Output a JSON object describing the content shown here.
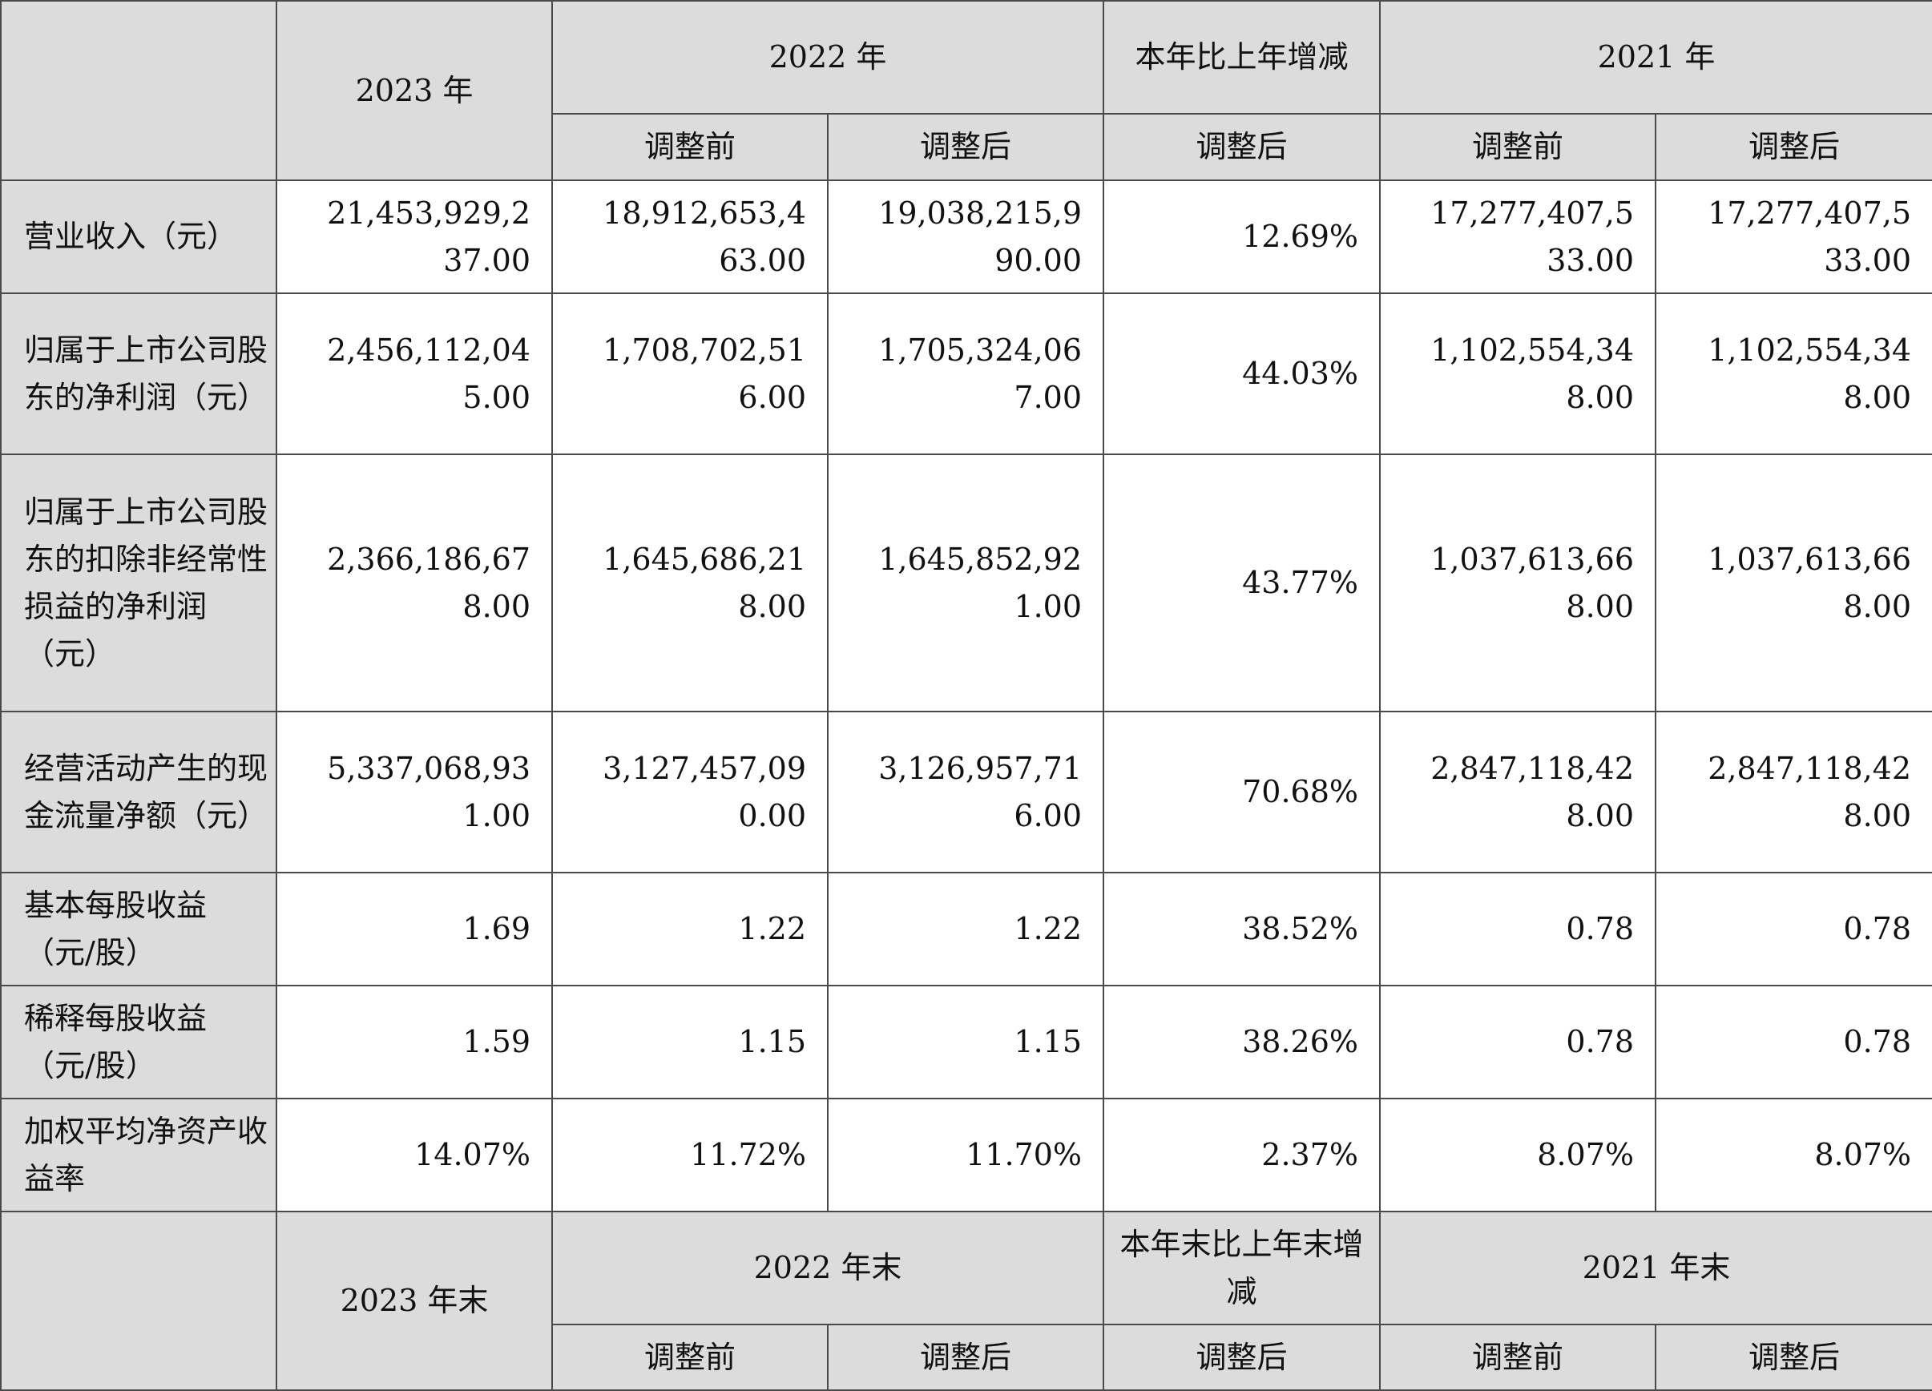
{
  "header": {
    "y2023": "2023 年",
    "y2022": "2022 年",
    "change": "本年比上年增减",
    "y2021": "2021 年",
    "before_2022": "调整前",
    "after_2022": "调整后",
    "change_after": "调整后",
    "before_2021": "调整前",
    "after_2021": "调整后"
  },
  "rows": [
    {
      "label": "营业收入（元）",
      "v2023": "21,453,929,2\n37.00",
      "v2022_before": "18,912,653,4\n63.00",
      "v2022_after": "19,038,215,9\n90.00",
      "change": "12.69%",
      "v2021_before": "17,277,407,5\n33.00",
      "v2021_after": "17,277,407,5\n33.00"
    },
    {
      "label": "归属于上市公司股东的净利润（元）",
      "v2023": "2,456,112,04\n5.00",
      "v2022_before": "1,708,702,51\n6.00",
      "v2022_after": "1,705,324,06\n7.00",
      "change": "44.03%",
      "v2021_before": "1,102,554,34\n8.00",
      "v2021_after": "1,102,554,34\n8.00"
    },
    {
      "label": "归属于上市公司股东的扣除非经常性损益的净利润（元）",
      "v2023": "2,366,186,67\n8.00",
      "v2022_before": "1,645,686,21\n8.00",
      "v2022_after": "1,645,852,92\n1.00",
      "change": "43.77%",
      "v2021_before": "1,037,613,66\n8.00",
      "v2021_after": "1,037,613,66\n8.00"
    },
    {
      "label": "经营活动产生的现金流量净额（元）",
      "v2023": "5,337,068,93\n1.00",
      "v2022_before": "3,127,457,09\n0.00",
      "v2022_after": "3,126,957,71\n6.00",
      "change": "70.68%",
      "v2021_before": "2,847,118,42\n8.00",
      "v2021_after": "2,847,118,42\n8.00"
    },
    {
      "label": "基本每股收益（元/股）",
      "v2023": "1.69",
      "v2022_before": "1.22",
      "v2022_after": "1.22",
      "change": "38.52%",
      "v2021_before": "0.78",
      "v2021_after": "0.78"
    },
    {
      "label": "稀释每股收益（元/股）",
      "v2023": "1.59",
      "v2022_before": "1.15",
      "v2022_after": "1.15",
      "change": "38.26%",
      "v2021_before": "0.78",
      "v2021_after": "0.78"
    },
    {
      "label": "加权平均净资产收益率",
      "v2023": "14.07%",
      "v2022_before": "11.72%",
      "v2022_after": "11.70%",
      "change": "2.37%",
      "v2021_before": "8.07%",
      "v2021_after": "8.07%"
    }
  ],
  "footer_header": {
    "y2023": "2023 年末",
    "y2022": "2022 年末",
    "change": "本年末比上年末增减",
    "y2021": "2021 年末",
    "before_2022": "调整前",
    "after_2022": "调整后",
    "change_after": "调整后",
    "before_2021": "调整前",
    "after_2021": "调整后"
  }
}
